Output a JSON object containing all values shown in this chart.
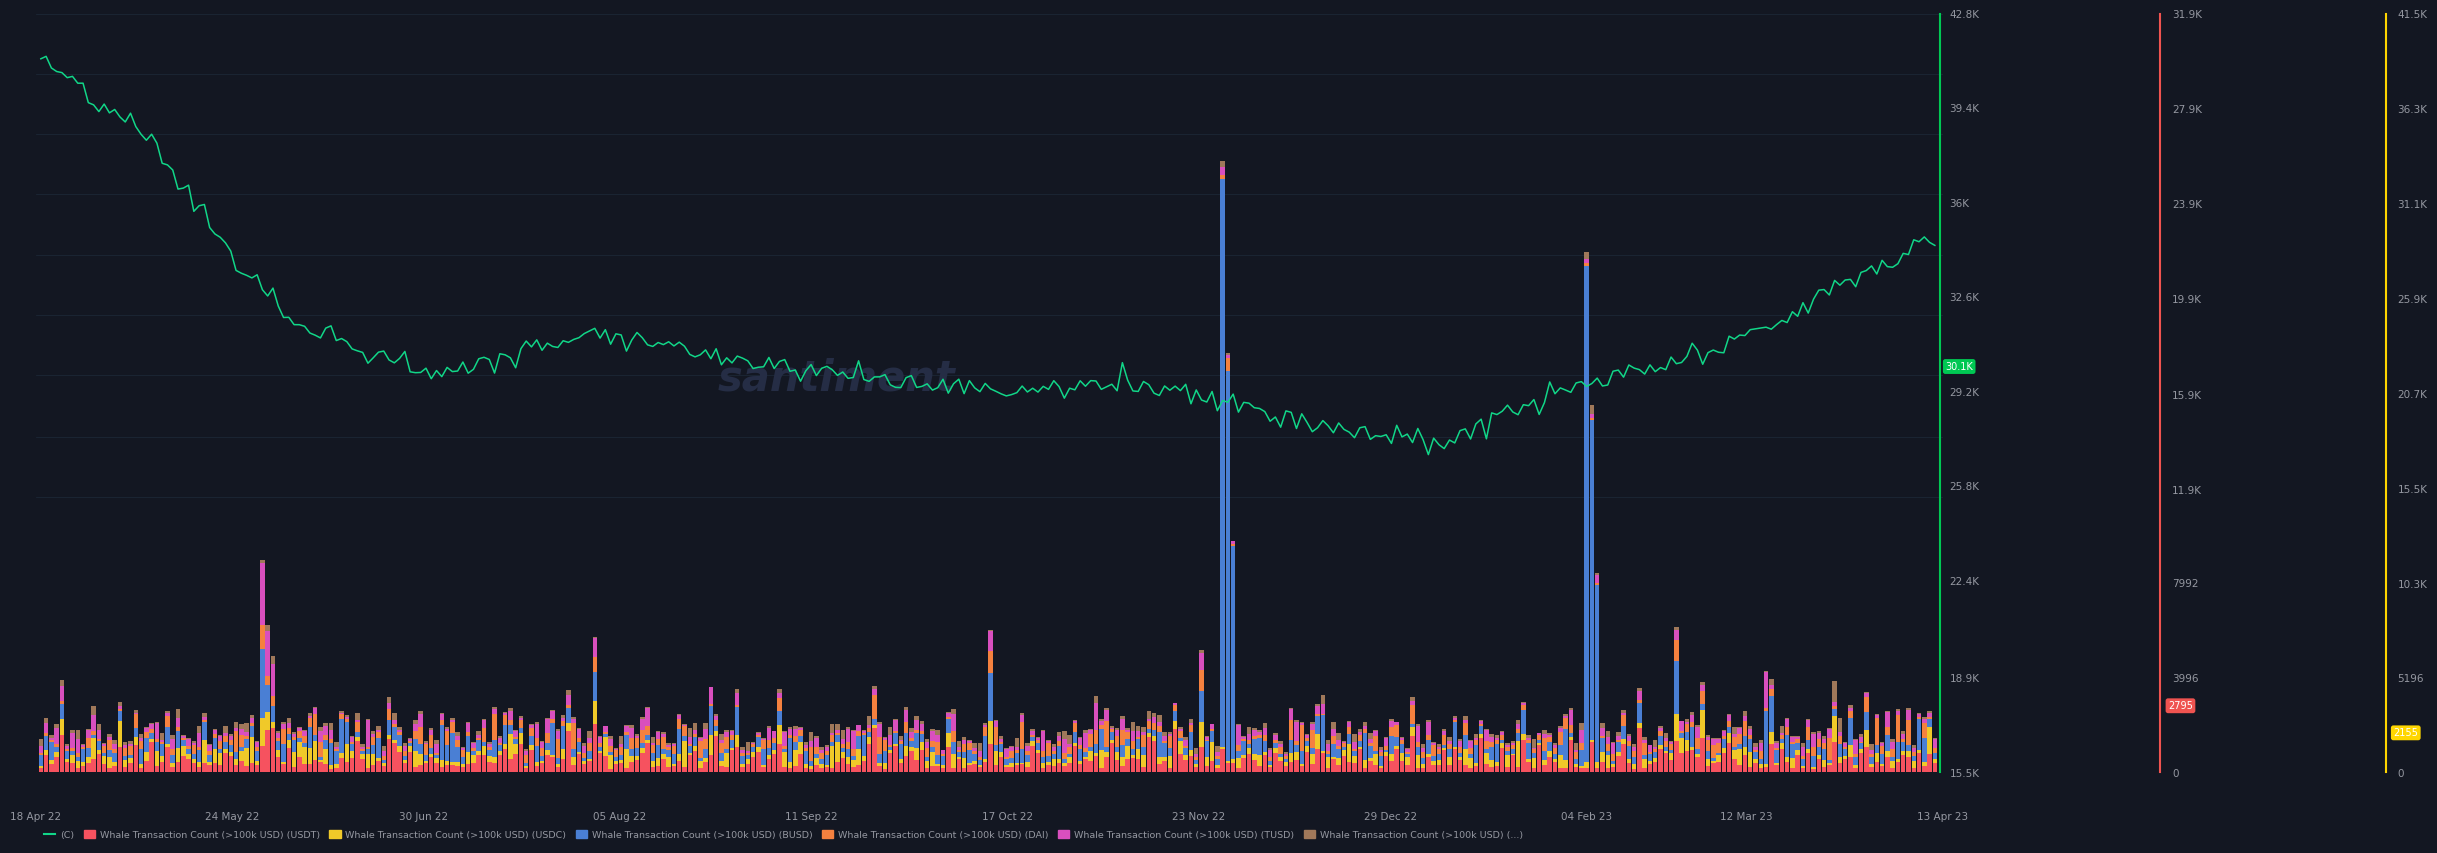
{
  "background_color": "#131722",
  "plot_bg_color": "#131722",
  "grid_color": "#1e2a3a",
  "text_color": "#9598a1",
  "date_labels": [
    "18 Apr 22",
    "24 May 22",
    "30 Jun 22",
    "05 Aug 22",
    "11 Sep 22",
    "17 Oct 22",
    "23 Nov 22",
    "29 Dec 22",
    "04 Feb 23",
    "12 Mar 23",
    "13 Apr 23"
  ],
  "right_axis1_labels": [
    "42.8K",
    "39.4K",
    "36K",
    "32.6K",
    "29.2K",
    "25.8K",
    "22.4K",
    "18.9K",
    "15.5K"
  ],
  "right_axis1_values": [
    42800,
    39400,
    36000,
    32600,
    29200,
    25800,
    22400,
    18900,
    15500
  ],
  "right_axis2_labels": [
    "31.9K",
    "27.9K",
    "23.9K",
    "19.9K",
    "15.9K",
    "11.9K",
    "7992",
    "3996",
    "0"
  ],
  "right_axis2_values": [
    31900,
    27900,
    23900,
    19900,
    15900,
    11900,
    7992,
    3996,
    0
  ],
  "right_axis3_labels": [
    "41.5K",
    "36.3K",
    "31.1K",
    "25.9K",
    "20.7K",
    "15.5K",
    "10.3K",
    "5196",
    "0"
  ],
  "right_axis3_values": [
    41500,
    36300,
    31100,
    25900,
    20700,
    15500,
    10300,
    5196,
    0
  ],
  "legend": [
    {
      "label": "Whale Transaction Count (>100k USD) (USDT)",
      "color": "#f6525f"
    },
    {
      "label": "Whale Transaction Count (>100k USD) (USDC)",
      "color": "#f0c929"
    },
    {
      "label": "Whale Transaction Count (>100k USD) (BUSD)",
      "color": "#4a7fd4"
    },
    {
      "label": "Whale Transaction Count (>100k USD) (DAI)",
      "color": "#f5813f"
    },
    {
      "label": "Whale Transaction Count (>100k USD) (TUSD)",
      "color": "#d94fbe"
    },
    {
      "label": "Whale Transaction Count (>100k USD) (...)",
      "color": "#a0785a"
    }
  ],
  "watermark": "santiment",
  "n_points": 360,
  "ymin": 0,
  "ymax": 42800,
  "green_line_color": "#11d688",
  "green_label_color": "#00c853",
  "red_vline_color": "#ef5350",
  "yellow_vline_color": "#ffd600"
}
